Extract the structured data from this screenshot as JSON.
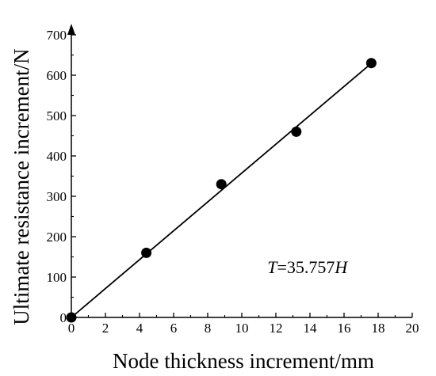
{
  "chart_data": {
    "type": "scatter",
    "title": "",
    "xlabel": "Node thickness increment/mm",
    "ylabel": "Ultimate resistance increment/N",
    "xlim": [
      0,
      20
    ],
    "ylim": [
      0,
      700
    ],
    "x_ticks": [
      0,
      2,
      4,
      6,
      8,
      10,
      12,
      14,
      16,
      18,
      20
    ],
    "y_ticks": [
      0,
      100,
      200,
      300,
      400,
      500,
      600,
      700
    ],
    "grid": false,
    "series": [
      {
        "type": "scatter",
        "x": [
          0,
          4.4,
          8.8,
          13.2,
          17.6
        ],
        "y": [
          0,
          160,
          330,
          460,
          630
        ]
      },
      {
        "type": "line",
        "slope": 35.757,
        "x_range": [
          0,
          17.6
        ]
      }
    ],
    "annotation": {
      "var_left": "T",
      "equals_coef": "=35.757",
      "var_right": "H",
      "x": 11.5,
      "y": 110
    }
  }
}
